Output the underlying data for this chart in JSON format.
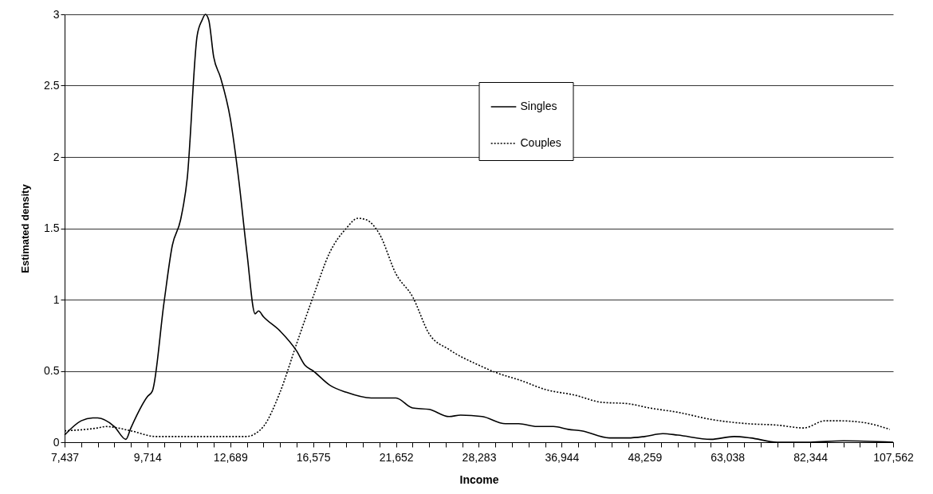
{
  "chart_data": {
    "type": "line",
    "xlabel": "Income",
    "ylabel": "Estimated density",
    "log": "x",
    "grid": "y",
    "legend": "top",
    "marker": "none",
    "xlim": [
      7437,
      107562
    ],
    "ylim": [
      0,
      3
    ],
    "yticks": [
      0,
      0.5,
      1,
      1.5,
      2,
      2.5,
      3
    ],
    "xticks": [
      {
        "value": 7437,
        "label": "7,437"
      },
      {
        "value": 7845,
        "label": null
      },
      {
        "value": 8276,
        "label": null
      },
      {
        "value": 8730,
        "label": null
      },
      {
        "value": 9209,
        "label": null
      },
      {
        "value": 9714,
        "label": "9,714"
      },
      {
        "value": 10248,
        "label": null
      },
      {
        "value": 10811,
        "label": null
      },
      {
        "value": 11403,
        "label": null
      },
      {
        "value": 12029,
        "label": null
      },
      {
        "value": 12689,
        "label": "12,689"
      },
      {
        "value": 13387,
        "label": null
      },
      {
        "value": 14121,
        "label": null
      },
      {
        "value": 14896,
        "label": null
      },
      {
        "value": 15714,
        "label": null
      },
      {
        "value": 16575,
        "label": "16,575"
      },
      {
        "value": 17486,
        "label": null
      },
      {
        "value": 18446,
        "label": null
      },
      {
        "value": 19457,
        "label": null
      },
      {
        "value": 20525,
        "label": null
      },
      {
        "value": 21652,
        "label": "21,652"
      },
      {
        "value": 22841,
        "label": null
      },
      {
        "value": 24094,
        "label": null
      },
      {
        "value": 25417,
        "label": null
      },
      {
        "value": 26812,
        "label": null
      },
      {
        "value": 28283,
        "label": "28,283"
      },
      {
        "value": 29836,
        "label": null
      },
      {
        "value": 31474,
        "label": null
      },
      {
        "value": 33202,
        "label": null
      },
      {
        "value": 35023,
        "label": null
      },
      {
        "value": 36944,
        "label": "36,944"
      },
      {
        "value": 38973,
        "label": null
      },
      {
        "value": 41112,
        "label": null
      },
      {
        "value": 43369,
        "label": null
      },
      {
        "value": 45749,
        "label": null
      },
      {
        "value": 48259,
        "label": "48,259"
      },
      {
        "value": 50908,
        "label": null
      },
      {
        "value": 53702,
        "label": null
      },
      {
        "value": 56650,
        "label": null
      },
      {
        "value": 59760,
        "label": null
      },
      {
        "value": 63038,
        "label": "63,038"
      },
      {
        "value": 66500,
        "label": null
      },
      {
        "value": 70150,
        "label": null
      },
      {
        "value": 74000,
        "label": null
      },
      {
        "value": 78062,
        "label": null
      },
      {
        "value": 82344,
        "label": "82,344"
      },
      {
        "value": 86865,
        "label": null
      },
      {
        "value": 91634,
        "label": null
      },
      {
        "value": 96665,
        "label": null
      },
      {
        "value": 101973,
        "label": null
      },
      {
        "value": 107562,
        "label": "107,562"
      }
    ],
    "series": [
      {
        "name": "Singles",
        "color": "#000000",
        "line_style": "solid",
        "x": [
          7437,
          7845,
          8144,
          8276,
          8730,
          9063,
          9209,
          9714,
          9872,
          10248,
          10526,
          10811,
          11044,
          11403,
          11588,
          11712,
          11838,
          12029,
          12290,
          12689,
          13033,
          13387,
          13750,
          13898,
          14121,
          14896,
          15714,
          16139,
          16575,
          17486,
          18446,
          19984,
          21652,
          22841,
          24094,
          25690,
          26669,
          28587,
          30808,
          32153,
          34099,
          35971,
          37744,
          39392,
          43137,
          45749,
          48259,
          51180,
          53702,
          59760,
          64401,
          67936,
          74000,
          81907,
          91634,
          107562
        ],
        "values": [
          0.05,
          0.15,
          0.17,
          0.17,
          0.11,
          0.02,
          0.1,
          0.32,
          0.36,
          0.98,
          1.38,
          1.56,
          1.85,
          2.85,
          2.96,
          3.0,
          2.96,
          2.7,
          2.56,
          2.27,
          1.85,
          1.33,
          0.9,
          0.92,
          0.88,
          0.78,
          0.64,
          0.54,
          0.5,
          0.4,
          0.35,
          0.31,
          0.31,
          0.24,
          0.23,
          0.18,
          0.19,
          0.18,
          0.13,
          0.13,
          0.11,
          0.11,
          0.09,
          0.08,
          0.03,
          0.03,
          0.04,
          0.06,
          0.05,
          0.02,
          0.04,
          0.03,
          0,
          0,
          0.01,
          0
        ]
      },
      {
        "name": "Couples",
        "color": "#000000",
        "line_style": "dotted",
        "x": [
          7437,
          8276,
          8500,
          9209,
          9977,
          13387,
          13750,
          14121,
          14896,
          15714,
          16575,
          17486,
          18446,
          19148,
          19666,
          20525,
          21652,
          22841,
          24094,
          25690,
          28283,
          29836,
          32499,
          35023,
          38559,
          42001,
          45749,
          49039,
          53702,
          59760,
          67214,
          74000,
          80605,
          86403,
          90176,
          97181,
          106409
        ],
        "values": [
          0.08,
          0.1,
          0.11,
          0.08,
          0.04,
          0.04,
          0.06,
          0.11,
          0.35,
          0.69,
          1.02,
          1.33,
          1.5,
          1.57,
          1.56,
          1.46,
          1.18,
          1.02,
          0.76,
          0.65,
          0.54,
          0.49,
          0.43,
          0.37,
          0.33,
          0.28,
          0.27,
          0.24,
          0.21,
          0.16,
          0.13,
          0.12,
          0.1,
          0.15,
          0.15,
          0.14,
          0.09
        ]
      }
    ]
  }
}
